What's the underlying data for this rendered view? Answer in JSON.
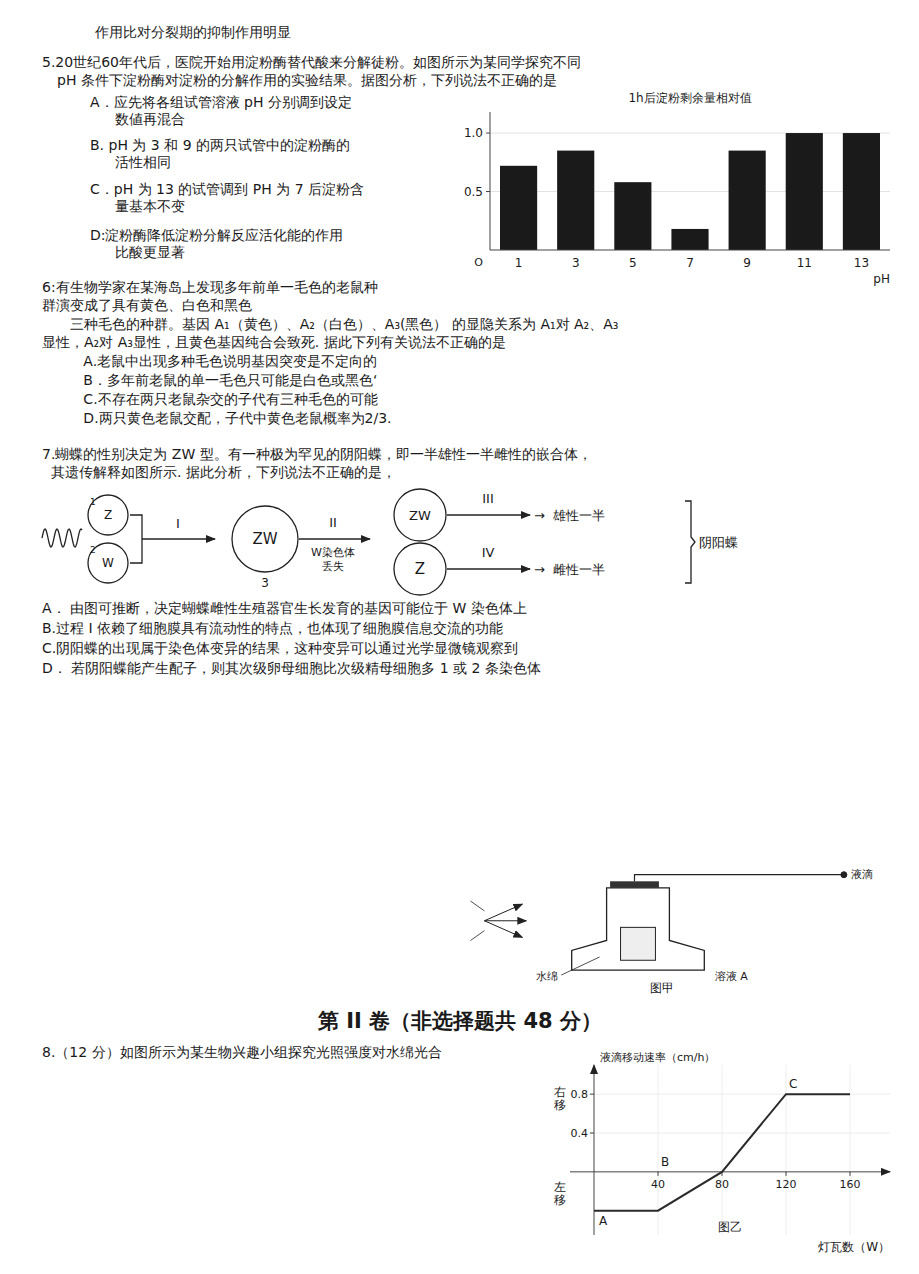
{
  "chart_data": [
    {
      "type": "bar",
      "title": "1h后淀粉剩余量相对值",
      "x_label": "pH",
      "categories": [
        "1",
        "3",
        "5",
        "7",
        "9",
        "11",
        "13"
      ],
      "values": [
        0.72,
        0.85,
        0.58,
        0.18,
        0.85,
        1.0,
        1.0
      ],
      "color": "#1a1a1a",
      "ylim": [
        0,
        1.18
      ],
      "yticks": [
        0.5,
        {
          "value": 1.0,
          "label": "1.0"
        }
      ],
      "annotations": [
        "O"
      ]
    },
    {
      "type": "line",
      "x_label": "灯瓦数（W）",
      "y_label": "液滴移动速率（cm/h）",
      "x": [
        0,
        40,
        80,
        120,
        160
      ],
      "values": [
        -0.4,
        -0.4,
        0.0,
        0.8,
        0.8
      ],
      "xlim": [
        -15,
        185
      ],
      "ylim": [
        -0.65,
        1.1
      ],
      "xticks": [
        40,
        80,
        120,
        160
      ],
      "yticks": [
        0.4,
        0.8
      ],
      "annotations": [
        "右\n移",
        "左\n移",
        "A",
        "B",
        "C",
        "图乙"
      ]
    }
  ],
  "annotations": [
    "作用比对分裂期的抑制作用明显",
    "5.20世纪60年代后，医院开始用淀粉酶替代酸来分解徒粉。如图所示为某同学探究不同",
    "pH 条件下淀粉酶对淀粉的分解作用的实验结果。据图分析，下列说法不正确的是",
    "A．应先将各组试管溶液 pH 分别调到设定",
    "数値再混合",
    "B. pH 为 3 和 9 的两只试管中的淀粉酶的",
    "活性相同",
    "C．pH 为 13 的试管调到 PH 为 7 后淀粉含",
    "量基本不变",
    "D:淀粉酶降低淀粉分解反应活化能的作用",
    "比酸更显著",
    "6:有生物学家在某海岛上发现多年前单一毛色的老鼠种",
    "群演变成了具有黄色、白色和黑色",
    "三种毛色的种群。基因 A₁（黄色）、A₂（白色）、A₃(黑色） 的显隐关系为 A₁对 A₂、A₃",
    "显性，A₂对 A₃显性，且黄色基因纯合会致死. 据此下列有关说法不正确的是",
    "   A.老鼠中出现多种毛色说明基因突变是不定向的",
    "   B．多年前老鼠的单一毛色只可能是白色或黑色‘",
    "   C.不存在两只老鼠杂交的子代有三种毛色的可能",
    "   D.两只黄色老鼠交配，子代中黄色老鼠概率为2/3.",
    "7.蝴蝶的性别决定为 ZW 型。有一种极为罕见的阴阳蝶，即一半雄性一半雌性的嵌合体，",
    "  其遗传解释如图所示. 据此分析，下列说法不正确的是，",
    "1",
    "Z",
    "2",
    "W",
    "I",
    "ZW",
    "3",
    "II",
    "W染色体",
    "丢失",
    "ZW",
    "Z",
    "III",
    "→  雄性一半",
    "IV",
    "→  雌性一半",
    "阴阳蝶",
    "A． 由图可推断，决定蝴蝶雌性生殖器官生长发育的基因可能位于 W 染色体上",
    "B.过程 I 依赖了细胞膜具有流动性的特点，也体现了细胞膜信息交流的功能",
    "C.阴阳蝶的出现属于染色体变异的结果，这种变异可以通过光学显微镜观察到",
    "D． 若阴阳蝶能产生配子，则其次级卵母细胞比次级精母细胞多 1 或 2 条染色体",
    "液滴",
    "水绵",
    "溶液 A",
    "图甲",
    "第 II 卷（非选择题共 48 分）",
    "8.（12 分）如图所示为某生物兴趣小组探究光照强度对水绵光合"
  ]
}
